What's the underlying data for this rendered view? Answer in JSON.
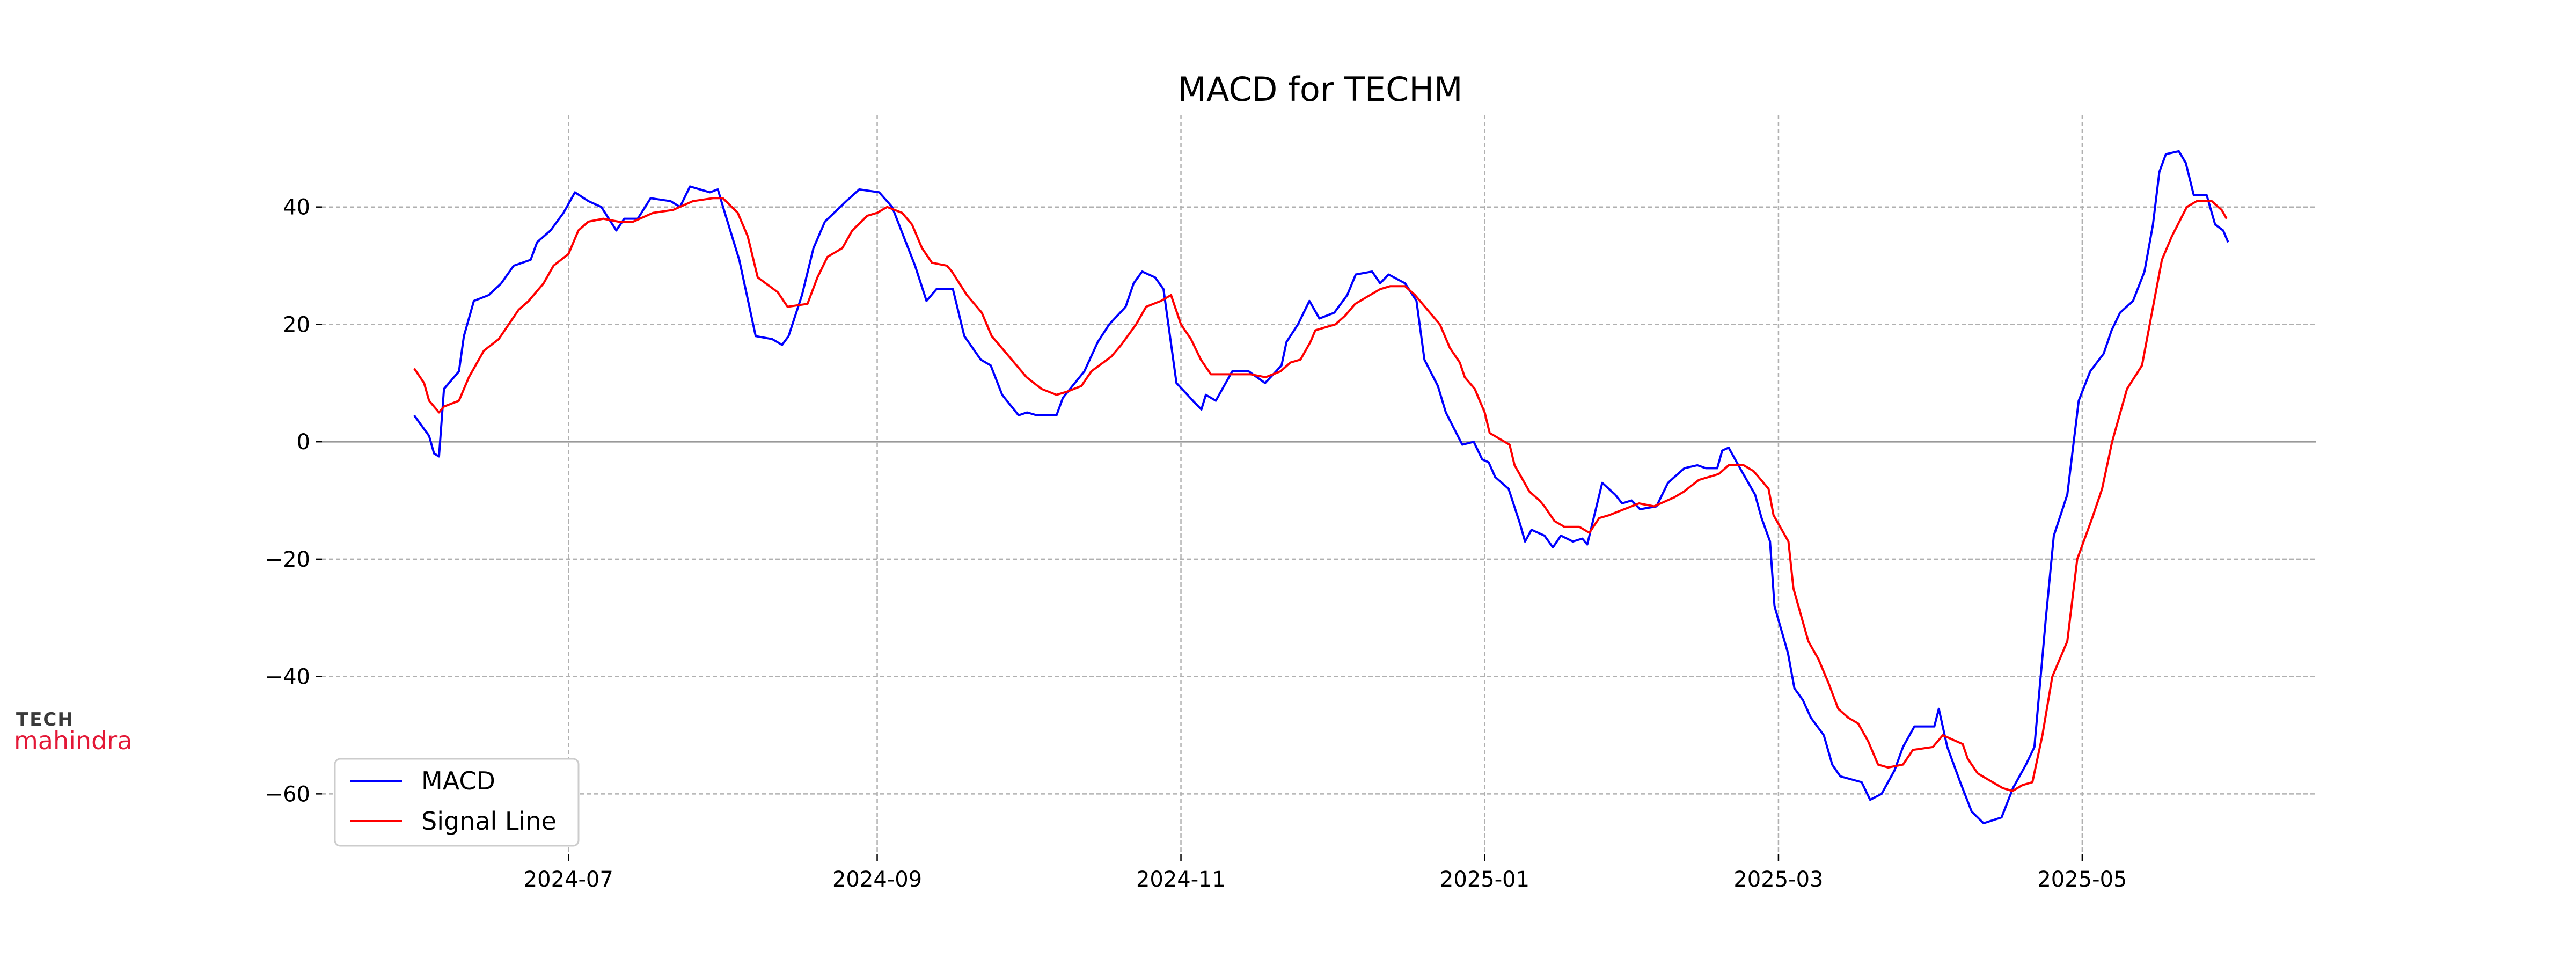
{
  "chart_data": {
    "type": "line",
    "title": "MACD for TECHM",
    "xlabel": "",
    "ylabel": "",
    "x_unit": "days since 2024-07-01",
    "xlim": [
      -49.5,
      351
    ],
    "ylim": [
      -70.3,
      55.7
    ],
    "grid": true,
    "legend_position": "bottom-left",
    "x_ticks": [
      {
        "label": "2024-07",
        "x": 0
      },
      {
        "label": "2024-09",
        "x": 62
      },
      {
        "label": "2024-11",
        "x": 123
      },
      {
        "label": "2025-01",
        "x": 184
      },
      {
        "label": "2025-03",
        "x": 243
      },
      {
        "label": "2025-05",
        "x": 304
      }
    ],
    "y_ticks": [
      {
        "label": "40",
        "y": 40
      },
      {
        "label": "20",
        "y": 20
      },
      {
        "label": "0",
        "y": 0
      },
      {
        "label": "−20",
        "y": -20
      },
      {
        "label": "−40",
        "y": -40
      },
      {
        "label": "−60",
        "y": -60
      }
    ],
    "series": [
      {
        "name": "MACD",
        "color": "#0000ff",
        "points": [
          [
            -31,
            4.5
          ],
          [
            -28,
            1
          ],
          [
            -27,
            -2
          ],
          [
            -26,
            -2.5
          ],
          [
            -25,
            9
          ],
          [
            -22,
            12
          ],
          [
            -21,
            18
          ],
          [
            -19,
            24
          ],
          [
            -16,
            25
          ],
          [
            -13.5,
            27
          ],
          [
            -11,
            30
          ],
          [
            -7.6,
            31
          ],
          [
            -6.3,
            34
          ],
          [
            -3.6,
            36
          ],
          [
            -1,
            39
          ],
          [
            1.3,
            42.5
          ],
          [
            4,
            41
          ],
          [
            6.6,
            40
          ],
          [
            9.6,
            36
          ],
          [
            11.2,
            38
          ],
          [
            13.9,
            38
          ],
          [
            16.5,
            41.5
          ],
          [
            20.5,
            41
          ],
          [
            22.4,
            40
          ],
          [
            24.4,
            43.5
          ],
          [
            28.4,
            42.5
          ],
          [
            30,
            43
          ],
          [
            31.4,
            39
          ],
          [
            34.3,
            31
          ],
          [
            37.6,
            18
          ],
          [
            40.9,
            17.5
          ],
          [
            42.9,
            16.5
          ],
          [
            44.2,
            18
          ],
          [
            46.9,
            25
          ],
          [
            49.2,
            33
          ],
          [
            51.5,
            37.5
          ],
          [
            55.8,
            41
          ],
          [
            58.4,
            43
          ],
          [
            62.4,
            42.5
          ],
          [
            65,
            40
          ],
          [
            67.3,
            35
          ],
          [
            69.6,
            30
          ],
          [
            71.9,
            24
          ],
          [
            73.9,
            26
          ],
          [
            77.2,
            26
          ],
          [
            79.5,
            18
          ],
          [
            82.8,
            14
          ],
          [
            84.8,
            13
          ],
          [
            87.1,
            8
          ],
          [
            90.4,
            4.5
          ],
          [
            92.1,
            5
          ],
          [
            94.1,
            4.5
          ],
          [
            98,
            4.5
          ],
          [
            99.3,
            7.5
          ],
          [
            103.6,
            12
          ],
          [
            106.3,
            17
          ],
          [
            108.6,
            20
          ],
          [
            111.9,
            23
          ],
          [
            113.5,
            27
          ],
          [
            115.2,
            29
          ],
          [
            117.8,
            28
          ],
          [
            119.5,
            26
          ],
          [
            122.1,
            10
          ],
          [
            125.4,
            7
          ],
          [
            127.1,
            5.5
          ],
          [
            128,
            8
          ],
          [
            130,
            7
          ],
          [
            133.3,
            12
          ],
          [
            136.6,
            12
          ],
          [
            139.9,
            10
          ],
          [
            143.2,
            13
          ],
          [
            144.2,
            17
          ],
          [
            146.5,
            20
          ],
          [
            148.8,
            24
          ],
          [
            150.8,
            21
          ],
          [
            153.8,
            22
          ],
          [
            156.4,
            25
          ],
          [
            158.1,
            28.5
          ],
          [
            161.4,
            29
          ],
          [
            163,
            27
          ],
          [
            164.7,
            28.5
          ],
          [
            168,
            27
          ],
          [
            170.3,
            24
          ],
          [
            171.9,
            14
          ],
          [
            174.6,
            9.5
          ],
          [
            176.2,
            5
          ],
          [
            179.5,
            -0.5
          ],
          [
            181.8,
            0
          ],
          [
            183.5,
            -3
          ],
          [
            184.8,
            -3.5
          ],
          [
            186.1,
            -6
          ],
          [
            188.8,
            -8
          ],
          [
            191.1,
            -14
          ],
          [
            192.1,
            -17
          ],
          [
            193.4,
            -15
          ],
          [
            196,
            -16
          ],
          [
            197.7,
            -18
          ],
          [
            199.3,
            -16
          ],
          [
            201.7,
            -17
          ],
          [
            203.6,
            -16.5
          ],
          [
            204.6,
            -17.5
          ],
          [
            207.6,
            -7
          ],
          [
            210.2,
            -9
          ],
          [
            211.6,
            -10.5
          ],
          [
            213.5,
            -10
          ],
          [
            215.2,
            -11.5
          ],
          [
            218.5,
            -11
          ],
          [
            220.8,
            -7
          ],
          [
            224.1,
            -4.5
          ],
          [
            226.7,
            -4
          ],
          [
            228.4,
            -4.5
          ],
          [
            230.7,
            -4.5
          ],
          [
            231.7,
            -1.5
          ],
          [
            233,
            -1
          ],
          [
            235.6,
            -5
          ],
          [
            238.3,
            -9
          ],
          [
            239.6,
            -13
          ],
          [
            241.3,
            -17
          ],
          [
            242.2,
            -28
          ],
          [
            244.9,
            -36
          ],
          [
            246.2,
            -42
          ],
          [
            247.9,
            -44
          ],
          [
            249.5,
            -47
          ],
          [
            252.1,
            -50
          ],
          [
            253.8,
            -55
          ],
          [
            255.4,
            -57
          ],
          [
            259.7,
            -58
          ],
          [
            261.4,
            -61
          ],
          [
            263.7,
            -60
          ],
          [
            266.3,
            -56
          ],
          [
            268,
            -52
          ],
          [
            270.3,
            -48.5
          ],
          [
            274.3,
            -48.5
          ],
          [
            275.2,
            -45.5
          ],
          [
            276.9,
            -52
          ],
          [
            279.5,
            -58
          ],
          [
            281.8,
            -63
          ],
          [
            284.2,
            -65
          ],
          [
            287.8,
            -64
          ],
          [
            290.1,
            -59
          ],
          [
            292.7,
            -55
          ],
          [
            294.4,
            -52
          ],
          [
            296.7,
            -30
          ],
          [
            298.3,
            -16
          ],
          [
            301,
            -9
          ],
          [
            303.3,
            7
          ],
          [
            305.6,
            12
          ],
          [
            308.3,
            15
          ],
          [
            309.9,
            19
          ],
          [
            311.6,
            22
          ],
          [
            314.2,
            24
          ],
          [
            316.5,
            29
          ],
          [
            318.2,
            37
          ],
          [
            319.5,
            46
          ],
          [
            320.8,
            49
          ],
          [
            323.4,
            49.5
          ],
          [
            324.8,
            47.5
          ],
          [
            326.4,
            42
          ],
          [
            329,
            42
          ],
          [
            330.7,
            37
          ],
          [
            332.3,
            36
          ],
          [
            333.3,
            34
          ]
        ]
      },
      {
        "name": "Signal Line",
        "color": "#ff0000",
        "points": [
          [
            -31,
            12.5
          ],
          [
            -29,
            10
          ],
          [
            -28,
            7
          ],
          [
            -26,
            5
          ],
          [
            -25,
            6
          ],
          [
            -22,
            7
          ],
          [
            -20,
            11
          ],
          [
            -17,
            15.5
          ],
          [
            -14,
            17.5
          ],
          [
            -10,
            22.5
          ],
          [
            -8,
            24
          ],
          [
            -5,
            27
          ],
          [
            -3,
            30
          ],
          [
            0,
            32
          ],
          [
            2,
            36
          ],
          [
            4,
            37.5
          ],
          [
            7,
            38
          ],
          [
            10,
            37.5
          ],
          [
            13,
            37.5
          ],
          [
            17,
            39
          ],
          [
            21,
            39.5
          ],
          [
            25,
            41
          ],
          [
            29,
            41.5
          ],
          [
            31,
            41.5
          ],
          [
            34,
            39
          ],
          [
            36,
            35
          ],
          [
            38,
            28
          ],
          [
            42,
            25.5
          ],
          [
            44,
            23
          ],
          [
            48,
            23.5
          ],
          [
            50,
            28
          ],
          [
            52,
            31.5
          ],
          [
            55,
            33
          ],
          [
            57,
            36
          ],
          [
            60,
            38.5
          ],
          [
            62,
            39
          ],
          [
            64,
            40
          ],
          [
            67,
            39
          ],
          [
            69,
            37
          ],
          [
            71,
            33
          ],
          [
            73,
            30.5
          ],
          [
            76,
            30
          ],
          [
            77,
            29
          ],
          [
            80,
            25
          ],
          [
            83,
            22
          ],
          [
            85,
            18
          ],
          [
            88,
            15
          ],
          [
            90,
            13
          ],
          [
            92,
            11
          ],
          [
            95,
            9
          ],
          [
            98,
            8
          ],
          [
            100,
            8.5
          ],
          [
            103,
            9.5
          ],
          [
            105,
            12
          ],
          [
            109,
            14.5
          ],
          [
            111,
            16.5
          ],
          [
            114,
            20
          ],
          [
            116,
            23
          ],
          [
            119,
            24
          ],
          [
            121,
            25
          ],
          [
            123,
            20
          ],
          [
            125,
            17.5
          ],
          [
            127,
            14
          ],
          [
            129,
            11.5
          ],
          [
            133,
            11.5
          ],
          [
            137,
            11.5
          ],
          [
            140,
            11
          ],
          [
            143,
            12
          ],
          [
            145,
            13.5
          ],
          [
            147,
            14
          ],
          [
            149,
            17
          ],
          [
            150,
            19
          ],
          [
            154,
            20
          ],
          [
            156,
            21.5
          ],
          [
            158,
            23.5
          ],
          [
            160,
            24.5
          ],
          [
            163,
            26
          ],
          [
            165,
            26.5
          ],
          [
            168,
            26.5
          ],
          [
            170,
            25
          ],
          [
            173,
            22
          ],
          [
            175,
            20
          ],
          [
            177,
            16
          ],
          [
            179,
            13.5
          ],
          [
            180,
            11
          ],
          [
            182,
            9
          ],
          [
            184,
            5
          ],
          [
            185,
            1.5
          ],
          [
            187,
            0.5
          ],
          [
            189,
            -0.5
          ],
          [
            190,
            -4
          ],
          [
            193,
            -8.5
          ],
          [
            195,
            -10
          ],
          [
            196,
            -11
          ],
          [
            198,
            -13.5
          ],
          [
            200,
            -14.5
          ],
          [
            203,
            -14.5
          ],
          [
            205,
            -15.5
          ],
          [
            207,
            -13
          ],
          [
            209,
            -12.5
          ],
          [
            212,
            -11.5
          ],
          [
            215,
            -10.5
          ],
          [
            218,
            -11
          ],
          [
            222,
            -9.5
          ],
          [
            224,
            -8.5
          ],
          [
            227,
            -6.5
          ],
          [
            229,
            -6
          ],
          [
            231,
            -5.5
          ],
          [
            233,
            -4
          ],
          [
            236,
            -4
          ],
          [
            238,
            -5
          ],
          [
            241,
            -8
          ],
          [
            242,
            -12.5
          ],
          [
            245,
            -17
          ],
          [
            246,
            -25
          ],
          [
            249,
            -34
          ],
          [
            251,
            -37
          ],
          [
            253,
            -41
          ],
          [
            255,
            -45.5
          ],
          [
            257,
            -47
          ],
          [
            259,
            -48
          ],
          [
            261,
            -51
          ],
          [
            263,
            -55
          ],
          [
            265,
            -55.5
          ],
          [
            268,
            -55
          ],
          [
            270,
            -52.5
          ],
          [
            274,
            -52
          ],
          [
            276,
            -50
          ],
          [
            280,
            -51.5
          ],
          [
            281,
            -54
          ],
          [
            283,
            -56.5
          ],
          [
            286,
            -58
          ],
          [
            288,
            -59
          ],
          [
            290,
            -59.5
          ],
          [
            292,
            -58.5
          ],
          [
            294,
            -58
          ],
          [
            296,
            -50
          ],
          [
            298,
            -40
          ],
          [
            301,
            -34
          ],
          [
            303,
            -20
          ],
          [
            306,
            -13
          ],
          [
            308,
            -8
          ],
          [
            310,
            0
          ],
          [
            312,
            6
          ],
          [
            313,
            9
          ],
          [
            316,
            13
          ],
          [
            318,
            22
          ],
          [
            320,
            31
          ],
          [
            322,
            35
          ],
          [
            325,
            40
          ],
          [
            327,
            41
          ],
          [
            330,
            41
          ],
          [
            332,
            39.5
          ],
          [
            333,
            38
          ]
        ]
      }
    ]
  },
  "logo": {
    "top": "TECH",
    "bottom": "mahindra"
  }
}
